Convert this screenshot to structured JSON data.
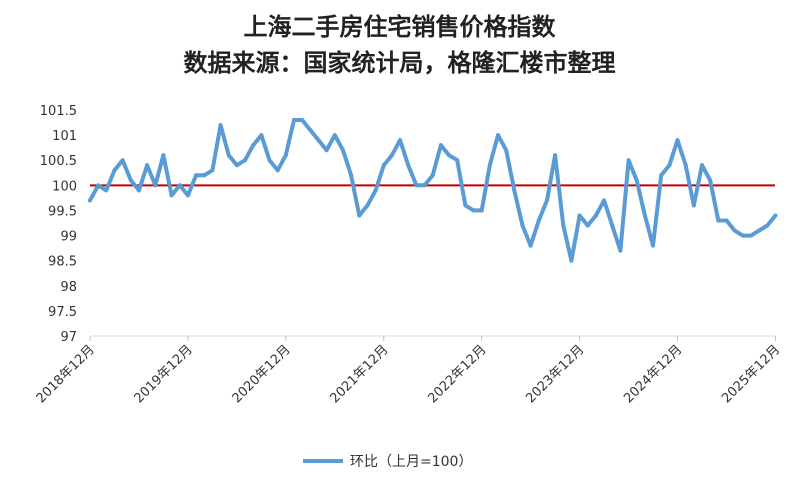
{
  "chart_data": {
    "type": "line",
    "title": "上海二手房住宅销售价格指数",
    "subtitle": "数据来源：国家统计局，格隆汇楼市整理",
    "xlabel": "",
    "ylabel": "",
    "ylim": [
      97,
      101.5
    ],
    "y_ticks": [
      "97",
      "97.5",
      "98",
      "98.5",
      "99",
      "99.5",
      "100",
      "100.5",
      "101",
      "101.5"
    ],
    "x_tick_labels": [
      "2018年12月",
      "2019年12月",
      "2020年12月",
      "2021年12月",
      "2022年12月",
      "2023年12月",
      "2024年12月",
      "2025年12月"
    ],
    "reference_line": {
      "value": 100,
      "color": "#c00000"
    },
    "legend_position": "bottom",
    "grid": false,
    "series": [
      {
        "name": "环比（上月=100）",
        "color": "#5b9bd5",
        "start": "2018-12",
        "values": [
          99.7,
          100.0,
          99.9,
          100.3,
          100.5,
          100.1,
          99.9,
          100.4,
          100.0,
          100.6,
          99.8,
          100.0,
          99.8,
          100.2,
          100.2,
          100.3,
          101.2,
          100.6,
          100.4,
          100.5,
          100.8,
          101.0,
          100.5,
          100.3,
          100.6,
          101.3,
          101.3,
          101.1,
          100.9,
          100.7,
          101.0,
          100.7,
          100.2,
          99.4,
          99.6,
          99.9,
          100.4,
          100.6,
          100.9,
          100.4,
          100.0,
          100.0,
          100.2,
          100.8,
          100.6,
          100.5,
          99.6,
          99.5,
          99.5,
          100.4,
          101.0,
          100.7,
          99.9,
          99.2,
          98.8,
          99.3,
          99.7,
          100.6,
          99.2,
          98.5,
          99.4,
          99.2,
          99.4,
          99.7,
          99.2,
          98.7,
          100.5,
          100.1,
          99.4,
          98.8,
          100.2,
          100.4,
          100.9,
          100.4,
          99.6,
          100.4,
          100.1,
          99.3,
          99.3,
          99.1,
          99.0,
          99.0,
          99.1,
          99.2,
          99.4
        ]
      }
    ]
  }
}
